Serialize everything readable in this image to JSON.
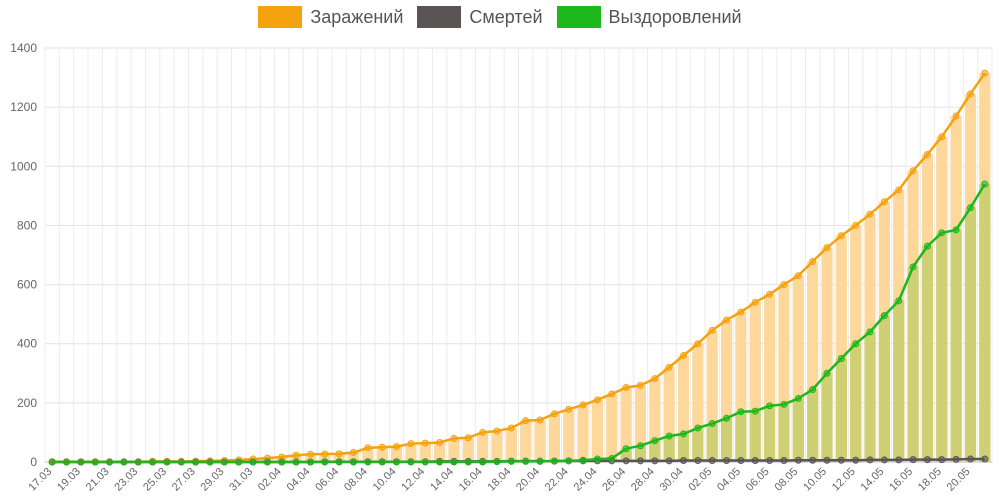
{
  "chart_data": {
    "type": "bar",
    "ylim": [
      0,
      1400
    ],
    "yticks": [
      0,
      200,
      400,
      600,
      800,
      1000,
      1200,
      1400
    ],
    "grid": true,
    "legend_position": "top-center",
    "colors": {
      "infected": "#f5a20f",
      "deaths": "#5a5454",
      "recovered": "#1cb81c",
      "infected_bar": "#fdd89a",
      "recovered_bar": "#cfcf73"
    },
    "x": [
      "17.03",
      "18.03",
      "19.03",
      "20.03",
      "21.03",
      "22.03",
      "23.03",
      "24.03",
      "25.03",
      "26.03",
      "27.03",
      "28.03",
      "29.03",
      "30.03",
      "31.03",
      "01.04",
      "02.04",
      "03.04",
      "04.04",
      "05.04",
      "06.04",
      "07.04",
      "08.04",
      "09.04",
      "10.04",
      "11.04",
      "12.04",
      "13.04",
      "14.04",
      "15.04",
      "16.04",
      "17.04",
      "18.04",
      "19.04",
      "20.04",
      "21.04",
      "22.04",
      "23.04",
      "24.04",
      "25.04",
      "26.04",
      "27.04",
      "28.04",
      "29.04",
      "30.04",
      "01.05",
      "02.05",
      "03.05",
      "04.05",
      "05.05",
      "06.05",
      "07.05",
      "08.05",
      "09.05",
      "10.05",
      "11.05",
      "12.05",
      "13.05",
      "14.05",
      "15.05",
      "16.05",
      "17.05",
      "18.05",
      "19.05",
      "20.05",
      "21.05"
    ],
    "x_tick_labels": [
      "17.03",
      "19.03",
      "21.03",
      "23.03",
      "25.03",
      "27.03",
      "29.03",
      "31.03",
      "02.04",
      "04.04",
      "06.04",
      "08.04",
      "10.04",
      "12.04",
      "14.04",
      "16.04",
      "18.04",
      "20.04",
      "22.04",
      "24.04",
      "26.04",
      "28.04",
      "30.04",
      "02.05",
      "04.05",
      "06.05",
      "08.05",
      "10.05",
      "12.05",
      "14.05",
      "16.05",
      "18.05",
      "20.05"
    ],
    "series": [
      {
        "name": "Заражений",
        "values": [
          1,
          1,
          1,
          1,
          1,
          1,
          1,
          2,
          2,
          2,
          3,
          4,
          5,
          7,
          10,
          13,
          17,
          23,
          26,
          27,
          28,
          32,
          48,
          50,
          52,
          62,
          64,
          66,
          80,
          82,
          100,
          105,
          115,
          140,
          142,
          163,
          178,
          193,
          210,
          230,
          252,
          259,
          282,
          320,
          360,
          400,
          445,
          480,
          507,
          540,
          567,
          600,
          630,
          678,
          725,
          765,
          800,
          838,
          880,
          920,
          985,
          1040,
          1100,
          1170,
          1245,
          1315
        ]
      },
      {
        "name": "Смертей",
        "values": [
          0,
          0,
          0,
          0,
          0,
          0,
          0,
          0,
          0,
          0,
          0,
          0,
          0,
          0,
          0,
          0,
          0,
          0,
          0,
          1,
          1,
          1,
          1,
          1,
          1,
          1,
          1,
          2,
          2,
          2,
          2,
          2,
          3,
          3,
          3,
          3,
          4,
          4,
          4,
          4,
          4,
          4,
          4,
          4,
          5,
          5,
          5,
          5,
          5,
          5,
          5,
          5,
          6,
          6,
          6,
          6,
          6,
          7,
          7,
          7,
          8,
          8,
          8,
          9,
          10,
          10
        ]
      },
      {
        "name": "Выздоровлений",
        "values": [
          0,
          0,
          0,
          0,
          0,
          0,
          0,
          0,
          0,
          0,
          0,
          0,
          0,
          0,
          0,
          0,
          0,
          0,
          0,
          0,
          0,
          0,
          0,
          0,
          0,
          0,
          0,
          0,
          0,
          0,
          0,
          1,
          2,
          2,
          2,
          3,
          4,
          6,
          10,
          12,
          45,
          55,
          72,
          88,
          95,
          115,
          130,
          148,
          170,
          172,
          190,
          195,
          215,
          245,
          300,
          350,
          400,
          440,
          495,
          545,
          660,
          730,
          775,
          785,
          860,
          940
        ]
      }
    ]
  }
}
